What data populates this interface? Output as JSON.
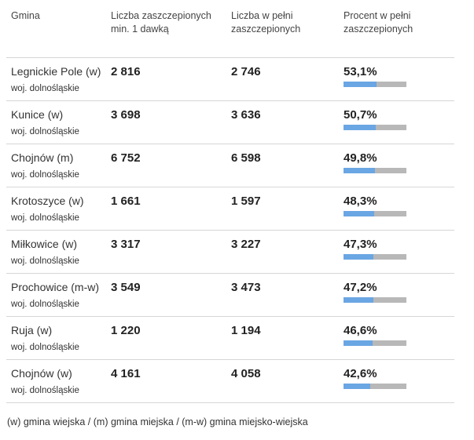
{
  "table": {
    "headers": {
      "gmina": "Gmina",
      "first_dose": "Liczba zaszczepionych min. 1 dawką",
      "fully": "Liczba w pełni zaszczepionych",
      "percent": "Procent w pełni zaszczepionych"
    },
    "rows": [
      {
        "name": "Legnickie Pole (w)",
        "region": "woj. dolnośląskie",
        "first_dose": "2 816",
        "fully": "2 746",
        "percent": "53,1%",
        "fraction": 0.531
      },
      {
        "name": "Kunice (w)",
        "region": "woj. dolnośląskie",
        "first_dose": "3 698",
        "fully": "3 636",
        "percent": "50,7%",
        "fraction": 0.507
      },
      {
        "name": "Chojnów (m)",
        "region": "woj. dolnośląskie",
        "first_dose": "6 752",
        "fully": "6 598",
        "percent": "49,8%",
        "fraction": 0.498
      },
      {
        "name": "Krotoszyce (w)",
        "region": "woj. dolnośląskie",
        "first_dose": "1 661",
        "fully": "1 597",
        "percent": "48,3%",
        "fraction": 0.483
      },
      {
        "name": "Miłkowice (w)",
        "region": "woj. dolnośląskie",
        "first_dose": "3 317",
        "fully": "3 227",
        "percent": "47,3%",
        "fraction": 0.473
      },
      {
        "name": "Prochowice (m-w)",
        "region": "woj. dolnośląskie",
        "first_dose": "3 549",
        "fully": "3 473",
        "percent": "47,2%",
        "fraction": 0.472
      },
      {
        "name": "Ruja (w)",
        "region": "woj. dolnośląskie",
        "first_dose": "1 220",
        "fully": "1 194",
        "percent": "46,6%",
        "fraction": 0.466
      },
      {
        "name": "Chojnów (w)",
        "region": "woj. dolnośląskie",
        "first_dose": "4 161",
        "fully": "4 058",
        "percent": "42,6%",
        "fraction": 0.426
      }
    ]
  },
  "footnote": "(w) gmina wiejska / (m) gmina miejska / (m-w) gmina miejsko-wiejska",
  "colors": {
    "bar_fill": "#6aa6e3",
    "bar_track": "#b8b8b8"
  }
}
